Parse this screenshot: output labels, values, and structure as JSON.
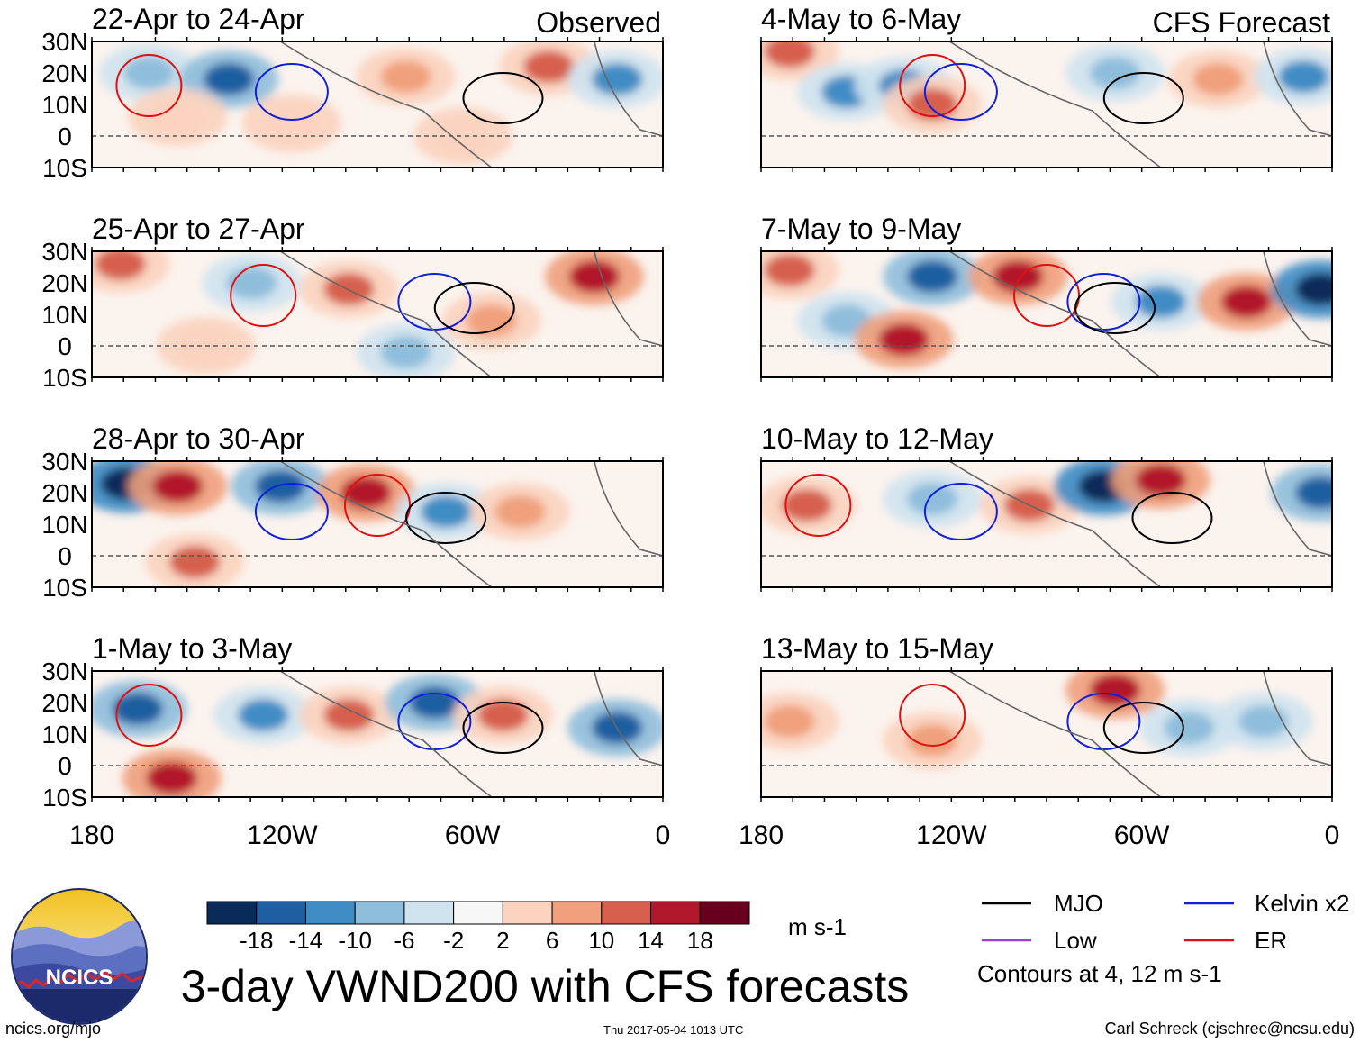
{
  "chart_data": {
    "type": "heatmap",
    "title": "3-day VWND200 with CFS forecasts",
    "units": "m s-1",
    "columns": [
      {
        "header": "Observed",
        "panels": [
          "22-Apr to 24-Apr",
          "25-Apr to 27-Apr",
          "28-Apr to 30-Apr",
          "1-May to 3-May"
        ]
      },
      {
        "header": "CFS Forecast",
        "panels": [
          "4-May to 6-May",
          "7-May to 9-May",
          "10-May to 12-May",
          "13-May to 15-May"
        ]
      }
    ],
    "lat_ticks": [
      "30N",
      "20N",
      "10N",
      "0",
      "10S"
    ],
    "lat_values": [
      30,
      20,
      10,
      0,
      -10
    ],
    "lon_ticks": [
      "180",
      "120W",
      "60W",
      "0"
    ],
    "lon_values": [
      -180,
      -120,
      -60,
      0
    ],
    "colorbar": {
      "labels": [
        "-18",
        "-14",
        "-10",
        "-6",
        "-2",
        "2",
        "6",
        "10",
        "14",
        "18"
      ],
      "colors": [
        "#0a2a5a",
        "#1f5ea0",
        "#3f8cc4",
        "#8fbedc",
        "#cfe3ef",
        "#f7f7f7",
        "#fbd3bf",
        "#f0a07c",
        "#d6604d",
        "#b2182b",
        "#67001f"
      ]
    },
    "legend": [
      {
        "label": "MJO",
        "color": "#000000"
      },
      {
        "label": "Kelvin x2",
        "color": "#1020d8"
      },
      {
        "label": "Low",
        "color": "#9a40d0"
      },
      {
        "label": "ER",
        "color": "#e01010"
      }
    ],
    "contour_note": "Contours at 4, 12 m s-1"
  },
  "footer": {
    "logo_text": "NCICS",
    "url": "ncics.org/mjo",
    "timestamp": "Thu 2017-05-04 1013 UTC",
    "credit": "Carl Schreck (cjschrec@ncsu.edu)"
  }
}
